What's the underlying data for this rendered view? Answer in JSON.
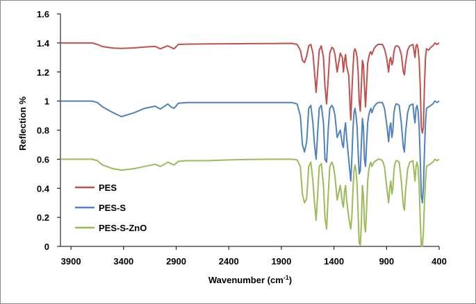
{
  "chart_data": {
    "type": "line",
    "xlabel": "Wavenumber (cm",
    "xlabel_sup": "-1",
    "xlabel_end": ")",
    "ylabel": "Reflection %",
    "xlim": [
      4000,
      400
    ],
    "x_reversed": true,
    "ylim": [
      0,
      1.6
    ],
    "x_ticks": [
      3900,
      3400,
      2900,
      2400,
      1900,
      1400,
      900,
      400
    ],
    "y_ticks": [
      0,
      0.2,
      0.4,
      0.6,
      0.8,
      1,
      1.2,
      1.4,
      1.6
    ],
    "y_tick_labels": [
      "0",
      "0.2",
      "0.4",
      "0.6",
      "0.8",
      "1",
      "1.2",
      "1.4",
      "1.6"
    ],
    "grid": false,
    "legend": "inside-lower-left",
    "series": [
      {
        "name": "PES",
        "color": "#c0504d",
        "x": [
          4000,
          3700,
          3650,
          3600,
          3500,
          3420,
          3300,
          3200,
          3100,
          3050,
          3000,
          2980,
          2950,
          2920,
          2880,
          2800,
          2600,
          2400,
          2200,
          2000,
          1800,
          1750,
          1720,
          1700,
          1680,
          1660,
          1640,
          1620,
          1600,
          1585,
          1570,
          1555,
          1540,
          1520,
          1500,
          1485,
          1470,
          1455,
          1440,
          1420,
          1405,
          1390,
          1370,
          1340,
          1320,
          1310,
          1300,
          1290,
          1280,
          1260,
          1240,
          1230,
          1220,
          1210,
          1200,
          1190,
          1180,
          1170,
          1160,
          1150,
          1140,
          1130,
          1120,
          1110,
          1100,
          1090,
          1080,
          1070,
          1060,
          1050,
          1040,
          1020,
          1000,
          980,
          960,
          940,
          920,
          900,
          880,
          870,
          860,
          850,
          840,
          830,
          820,
          810,
          800,
          780,
          760,
          740,
          730,
          720,
          700,
          680,
          650,
          640,
          630,
          620,
          610,
          600,
          590,
          580,
          570,
          560,
          550,
          540,
          530,
          520,
          500,
          480,
          460,
          440,
          420,
          400
        ],
        "y": [
          1.4,
          1.4,
          1.39,
          1.375,
          1.365,
          1.362,
          1.366,
          1.372,
          1.376,
          1.36,
          1.375,
          1.38,
          1.37,
          1.36,
          1.39,
          1.392,
          1.393,
          1.394,
          1.395,
          1.396,
          1.397,
          1.39,
          1.35,
          1.28,
          1.265,
          1.31,
          1.38,
          1.39,
          1.33,
          1.2,
          1.06,
          1.2,
          1.35,
          1.38,
          1.3,
          1.1,
          0.98,
          1.15,
          1.33,
          1.37,
          1.36,
          1.32,
          1.2,
          1.33,
          1.3,
          1.2,
          1.28,
          1.32,
          1.24,
          1.18,
          0.87,
          1.05,
          1.22,
          1.34,
          1.36,
          1.34,
          1.3,
          1.2,
          1.0,
          0.93,
          1.1,
          1.28,
          1.25,
          1.1,
          0.96,
          1.1,
          1.26,
          1.3,
          1.33,
          1.34,
          1.32,
          1.36,
          1.38,
          1.39,
          1.39,
          1.39,
          1.36,
          1.3,
          1.2,
          1.28,
          1.3,
          1.25,
          1.27,
          1.34,
          1.37,
          1.38,
          1.38,
          1.37,
          1.32,
          1.2,
          1.18,
          1.26,
          1.35,
          1.38,
          1.39,
          1.35,
          1.3,
          1.38,
          1.39,
          1.36,
          1.28,
          1.1,
          0.82,
          0.78,
          0.82,
          1.1,
          1.3,
          1.36,
          1.35,
          1.37,
          1.38,
          1.4,
          1.39,
          1.4
        ]
      },
      {
        "name": "PES-S",
        "color": "#4f81bd",
        "x": [
          4000,
          3700,
          3650,
          3600,
          3500,
          3420,
          3300,
          3200,
          3100,
          3050,
          3000,
          2980,
          2950,
          2920,
          2880,
          2800,
          2600,
          2400,
          2200,
          2000,
          1800,
          1750,
          1720,
          1700,
          1680,
          1660,
          1640,
          1620,
          1600,
          1585,
          1570,
          1555,
          1540,
          1520,
          1500,
          1485,
          1470,
          1455,
          1440,
          1420,
          1405,
          1390,
          1370,
          1340,
          1320,
          1310,
          1300,
          1290,
          1280,
          1260,
          1240,
          1230,
          1220,
          1210,
          1200,
          1190,
          1180,
          1170,
          1160,
          1150,
          1140,
          1130,
          1120,
          1110,
          1100,
          1090,
          1080,
          1070,
          1060,
          1050,
          1040,
          1020,
          1000,
          980,
          960,
          940,
          920,
          900,
          880,
          870,
          860,
          850,
          840,
          830,
          820,
          810,
          800,
          780,
          760,
          740,
          730,
          720,
          700,
          680,
          650,
          640,
          630,
          620,
          610,
          600,
          590,
          580,
          570,
          560,
          550,
          540,
          530,
          520,
          500,
          480,
          460,
          440,
          420,
          400
        ],
        "y": [
          1.0,
          1.0,
          0.99,
          0.96,
          0.92,
          0.893,
          0.92,
          0.95,
          0.965,
          0.945,
          0.97,
          0.98,
          0.96,
          0.95,
          0.985,
          0.99,
          0.99,
          0.99,
          0.99,
          0.99,
          0.99,
          0.98,
          0.9,
          0.7,
          0.65,
          0.72,
          0.95,
          0.97,
          0.85,
          0.7,
          0.6,
          0.78,
          0.95,
          0.97,
          0.85,
          0.6,
          0.58,
          0.8,
          0.95,
          0.97,
          0.95,
          0.9,
          0.75,
          0.8,
          0.7,
          0.68,
          0.8,
          0.85,
          0.75,
          0.6,
          0.45,
          0.6,
          0.8,
          0.92,
          0.95,
          0.9,
          0.82,
          0.65,
          0.5,
          0.52,
          0.7,
          0.88,
          0.82,
          0.6,
          0.55,
          0.7,
          0.85,
          0.9,
          0.93,
          0.95,
          0.92,
          0.96,
          0.98,
          0.99,
          0.99,
          0.99,
          0.95,
          0.85,
          0.72,
          0.82,
          0.85,
          0.75,
          0.8,
          0.92,
          0.96,
          0.98,
          0.98,
          0.97,
          0.85,
          0.68,
          0.65,
          0.78,
          0.92,
          0.97,
          0.98,
          0.9,
          0.85,
          0.95,
          0.97,
          0.93,
          0.82,
          0.6,
          0.35,
          0.3,
          0.4,
          0.65,
          0.85,
          0.95,
          0.96,
          0.97,
          0.98,
          1.0,
          0.99,
          1.0
        ]
      },
      {
        "name": "PES-S-ZnO",
        "color": "#9bbb59",
        "x": [
          4000,
          3700,
          3650,
          3600,
          3500,
          3420,
          3300,
          3200,
          3100,
          3050,
          3000,
          2980,
          2950,
          2920,
          2880,
          2800,
          2600,
          2400,
          2200,
          2000,
          1800,
          1750,
          1720,
          1700,
          1680,
          1660,
          1640,
          1620,
          1600,
          1585,
          1570,
          1555,
          1540,
          1520,
          1500,
          1485,
          1470,
          1455,
          1440,
          1420,
          1405,
          1390,
          1370,
          1340,
          1320,
          1310,
          1300,
          1290,
          1280,
          1260,
          1240,
          1230,
          1220,
          1210,
          1200,
          1190,
          1180,
          1170,
          1160,
          1150,
          1140,
          1130,
          1120,
          1110,
          1100,
          1090,
          1080,
          1070,
          1060,
          1050,
          1040,
          1020,
          1000,
          980,
          960,
          940,
          920,
          900,
          880,
          870,
          860,
          850,
          840,
          830,
          820,
          810,
          800,
          780,
          760,
          740,
          730,
          720,
          700,
          680,
          650,
          640,
          630,
          620,
          610,
          600,
          590,
          580,
          570,
          560,
          550,
          540,
          530,
          520,
          500,
          480,
          460,
          440,
          420,
          400
        ],
        "y": [
          0.6,
          0.6,
          0.59,
          0.56,
          0.535,
          0.525,
          0.535,
          0.55,
          0.565,
          0.55,
          0.57,
          0.58,
          0.57,
          0.56,
          0.585,
          0.59,
          0.59,
          0.595,
          0.598,
          0.6,
          0.6,
          0.595,
          0.55,
          0.36,
          0.3,
          0.33,
          0.55,
          0.58,
          0.45,
          0.3,
          0.18,
          0.35,
          0.55,
          0.57,
          0.42,
          0.2,
          0.12,
          0.35,
          0.55,
          0.58,
          0.55,
          0.48,
          0.32,
          0.42,
          0.3,
          0.27,
          0.38,
          0.42,
          0.32,
          0.2,
          0.12,
          0.2,
          0.38,
          0.52,
          0.56,
          0.52,
          0.42,
          0.22,
          0.02,
          0.01,
          0.15,
          0.42,
          0.35,
          0.15,
          0.1,
          0.25,
          0.45,
          0.52,
          0.56,
          0.58,
          0.55,
          0.58,
          0.59,
          0.6,
          0.6,
          0.59,
          0.55,
          0.42,
          0.3,
          0.4,
          0.45,
          0.36,
          0.4,
          0.52,
          0.57,
          0.59,
          0.59,
          0.58,
          0.45,
          0.28,
          0.25,
          0.38,
          0.53,
          0.58,
          0.59,
          0.52,
          0.45,
          0.55,
          0.58,
          0.54,
          0.42,
          0.18,
          0.005,
          0.0,
          0.1,
          0.3,
          0.45,
          0.55,
          0.56,
          0.57,
          0.58,
          0.6,
          0.59,
          0.6
        ]
      }
    ]
  }
}
